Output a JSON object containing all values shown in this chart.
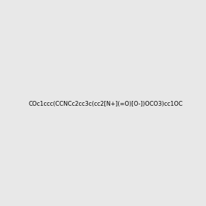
{
  "smiles": "COc1ccc(CCNCc2cc3c(cc2[N+](=O)[O-])OCO3)cc1OC",
  "title": "",
  "bg_color": "#e8e8e8",
  "figure_size": [
    3.0,
    3.0
  ],
  "dpi": 100,
  "atom_colors": {
    "N": "#0000ff",
    "O": "#ff0000",
    "H_on_N": "#008080"
  }
}
